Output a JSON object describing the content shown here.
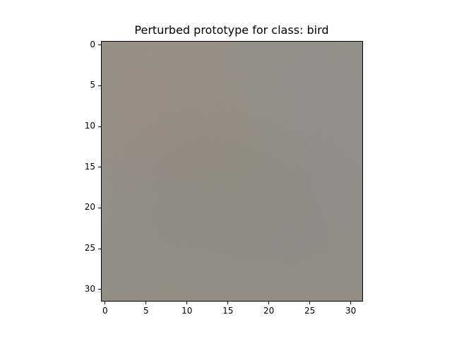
{
  "figure": {
    "title": "Perturbed prototype for class: bird"
  },
  "chart_data": {
    "type": "heatmap",
    "title": "Perturbed prototype for class: bird",
    "xlabel": "",
    "ylabel": "",
    "x_ticks": [
      "0",
      "5",
      "10",
      "15",
      "20",
      "25",
      "30"
    ],
    "y_ticks": [
      "0",
      "5",
      "10",
      "15",
      "20",
      "25",
      "30"
    ],
    "xlim": [
      -0.5,
      31.5
    ],
    "ylim": [
      31.5,
      -0.5
    ],
    "image_size": [
      32,
      32
    ],
    "background_color": "#958f86",
    "patches": [
      {
        "x": 1,
        "y": 1,
        "w": 8,
        "h": 9,
        "color": "#9f8d7c"
      },
      {
        "x": 0,
        "y": 10,
        "w": 5,
        "h": 8,
        "color": "#998a88"
      },
      {
        "x": 19,
        "y": 0,
        "w": 13,
        "h": 8,
        "color": "#948e8b"
      },
      {
        "x": 22,
        "y": 8,
        "w": 10,
        "h": 8,
        "color": "#8e8b8d"
      },
      {
        "x": 13,
        "y": 12,
        "w": 9,
        "h": 4,
        "color": "#9f9688"
      },
      {
        "x": 15,
        "y": 14,
        "w": 8,
        "h": 6,
        "color": "#a9a085"
      },
      {
        "x": 8,
        "y": 18,
        "w": 7,
        "h": 6,
        "color": "#90959a"
      },
      {
        "x": 14,
        "y": 20,
        "w": 7,
        "h": 7,
        "color": "#8e989a"
      },
      {
        "x": 22,
        "y": 19,
        "w": 8,
        "h": 8,
        "color": "#878a8a"
      },
      {
        "x": 0,
        "y": 20,
        "w": 7,
        "h": 8,
        "color": "#8c8e87"
      },
      {
        "x": 2,
        "y": 27,
        "w": 28,
        "h": 5,
        "color": "#908c7e"
      },
      {
        "x": 10,
        "y": 15,
        "w": 6,
        "h": 5,
        "color": "#7c6b5a"
      },
      {
        "x": 17,
        "y": 17,
        "w": 5,
        "h": 4,
        "color": "#7a6a58"
      },
      {
        "x": 11,
        "y": 16,
        "w": 3,
        "h": 3,
        "color": "#6e5c4c"
      },
      {
        "x": 18,
        "y": 18,
        "w": 3,
        "h": 2,
        "color": "#6c5a4a"
      }
    ]
  }
}
